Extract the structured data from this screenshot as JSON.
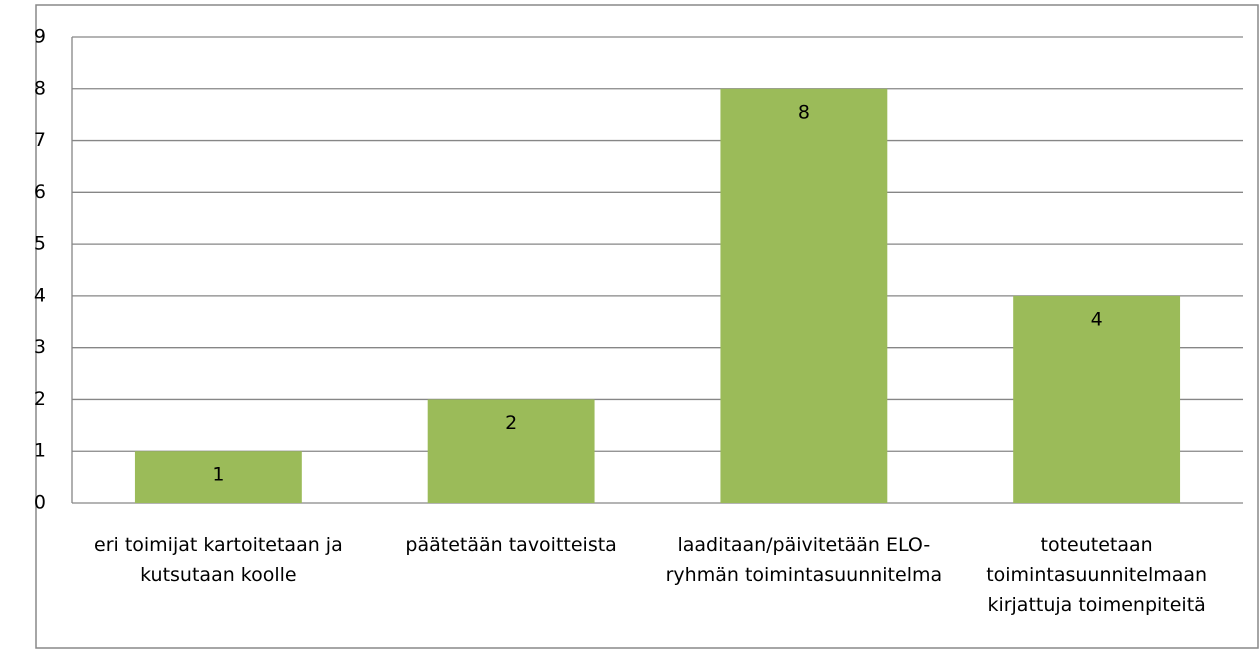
{
  "chart_data": {
    "type": "bar",
    "categories": [
      "eri toimijat kartoitetaan ja kutsutaan koolle",
      "päätetään tavoitteista",
      "laaditaan/päivitetään ELO-ryhmän toimintasuunnitelma",
      "toteutetaan toimintasuunnitelmaan kirjattuja toimenpiteitä"
    ],
    "values": [
      1,
      2,
      8,
      4
    ],
    "color": "#9bbb59",
    "ylim": [
      0,
      9
    ],
    "yticks": [
      0,
      1,
      2,
      3,
      4,
      5,
      6,
      7,
      8,
      9
    ],
    "grid": true
  }
}
